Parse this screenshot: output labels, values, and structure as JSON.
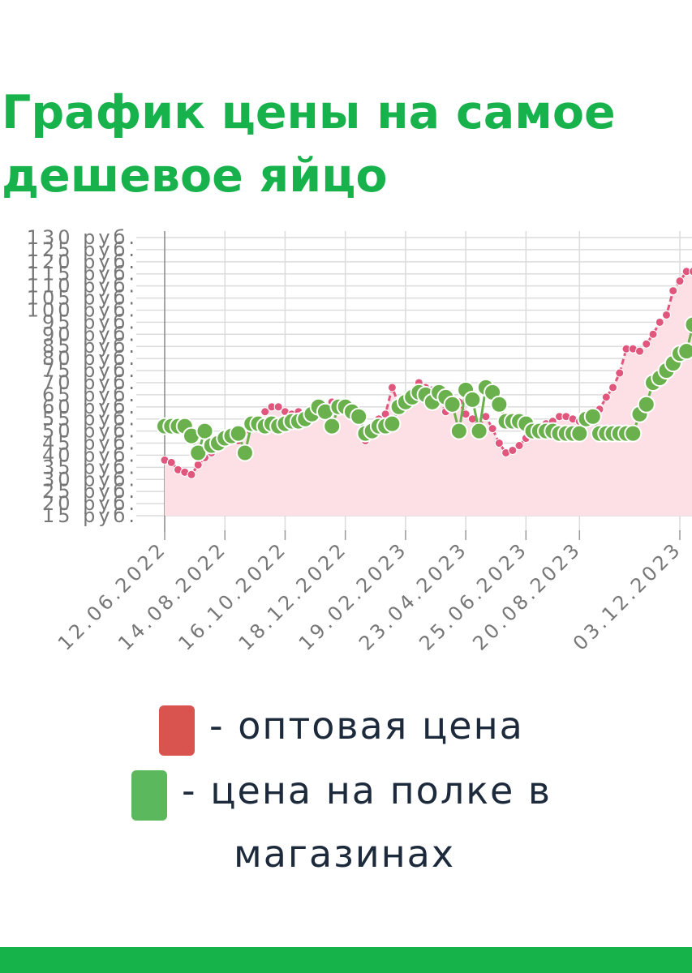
{
  "title": "График цены на самое дешевое яйцо",
  "legend": [
    {
      "swatch_color": "#d9534f",
      "label": "- оптовая цена"
    },
    {
      "swatch_color": "#5cb85c",
      "label_line1": "- цена на полке в",
      "label_line2": "магазинах"
    }
  ],
  "colors": {
    "title": "#17b24b",
    "wholesale_line": "#e0567d",
    "wholesale_fill": "#fde0e6",
    "shelf_marker": "#6ab04c",
    "shelf_stroke": "#ffffff",
    "footer": "#16b34a"
  },
  "chart_data": {
    "type": "line",
    "x_tick_labels": [
      "12.06.2022",
      "14.08.2022",
      "16.10.2022",
      "18.12.2022",
      "19.02.2023",
      "23.04.2023",
      "25.06.2023",
      "20.08.2023",
      "03.12.2023"
    ],
    "y_tick_labels": [
      "130 руб.",
      "125 руб.",
      "120 руб.",
      "115 руб.",
      "110 руб.",
      "105 руб.",
      "100 руб.",
      "95 руб.",
      "90 руб.",
      "85 руб.",
      "80 руб.",
      "75 руб.",
      "70 руб.",
      "65 руб.",
      "60 руб.",
      "55 руб.",
      "50 руб.",
      "45 руб.",
      "40 руб.",
      "35 руб.",
      "30 руб.",
      "25 руб.",
      "20 руб.",
      "15 руб."
    ],
    "ylim": [
      15,
      130
    ],
    "xlim": [
      "2022-06-12",
      "2023-12-03"
    ],
    "grid": true,
    "legend_position": "bottom",
    "series": [
      {
        "name": "оптовая цена",
        "style": "dashed line with small dots, filled area",
        "points": [
          [
            "2022-06-12",
            38
          ],
          [
            "2022-06-19",
            37
          ],
          [
            "2022-06-26",
            34
          ],
          [
            "2022-07-03",
            33
          ],
          [
            "2022-07-10",
            32
          ],
          [
            "2022-07-17",
            36
          ],
          [
            "2022-07-24",
            39
          ],
          [
            "2022-07-31",
            41
          ],
          [
            "2022-08-07",
            43
          ],
          [
            "2022-08-14",
            45
          ],
          [
            "2022-08-21",
            48
          ],
          [
            "2022-08-28",
            46
          ],
          [
            "2022-09-04",
            50
          ],
          [
            "2022-09-11",
            52
          ],
          [
            "2022-09-18",
            54
          ],
          [
            "2022-09-25",
            58
          ],
          [
            "2022-10-02",
            60
          ],
          [
            "2022-10-09",
            60
          ],
          [
            "2022-10-16",
            58
          ],
          [
            "2022-10-23",
            57
          ],
          [
            "2022-10-30",
            58
          ],
          [
            "2022-11-06",
            57
          ],
          [
            "2022-11-13",
            57
          ],
          [
            "2022-11-20",
            59
          ],
          [
            "2022-11-27",
            60
          ],
          [
            "2022-12-04",
            62
          ],
          [
            "2022-12-11",
            60
          ],
          [
            "2022-12-18",
            59
          ],
          [
            "2022-12-25",
            56
          ],
          [
            "2023-01-01",
            54
          ],
          [
            "2023-01-08",
            46
          ],
          [
            "2023-01-15",
            52
          ],
          [
            "2023-01-22",
            55
          ],
          [
            "2023-01-29",
            57
          ],
          [
            "2023-02-05",
            68
          ],
          [
            "2023-02-12",
            61
          ],
          [
            "2023-02-19",
            63
          ],
          [
            "2023-02-26",
            66
          ],
          [
            "2023-03-05",
            70
          ],
          [
            "2023-03-12",
            68
          ],
          [
            "2023-03-19",
            67
          ],
          [
            "2023-03-26",
            64
          ],
          [
            "2023-04-02",
            58
          ],
          [
            "2023-04-09",
            60
          ],
          [
            "2023-04-16",
            62
          ],
          [
            "2023-04-23",
            57
          ],
          [
            "2023-04-30",
            55
          ],
          [
            "2023-05-07",
            52
          ],
          [
            "2023-05-14",
            56
          ],
          [
            "2023-05-21",
            51
          ],
          [
            "2023-05-28",
            45
          ],
          [
            "2023-06-04",
            41
          ],
          [
            "2023-06-11",
            42
          ],
          [
            "2023-06-18",
            44
          ],
          [
            "2023-06-25",
            47
          ],
          [
            "2023-07-02",
            49
          ],
          [
            "2023-07-09",
            52
          ],
          [
            "2023-07-16",
            53
          ],
          [
            "2023-07-23",
            54
          ],
          [
            "2023-07-30",
            56
          ],
          [
            "2023-08-06",
            56
          ],
          [
            "2023-08-13",
            55
          ],
          [
            "2023-08-20",
            54
          ],
          [
            "2023-08-27",
            55
          ],
          [
            "2023-09-03",
            57
          ],
          [
            "2023-09-10",
            59
          ],
          [
            "2023-09-17",
            64
          ],
          [
            "2023-09-24",
            68
          ],
          [
            "2023-10-01",
            74
          ],
          [
            "2023-10-08",
            84
          ],
          [
            "2023-10-15",
            84
          ],
          [
            "2023-10-22",
            83
          ],
          [
            "2023-10-29",
            86
          ],
          [
            "2023-11-05",
            90
          ],
          [
            "2023-11-12",
            95
          ],
          [
            "2023-11-19",
            98
          ],
          [
            "2023-11-26",
            108
          ],
          [
            "2023-12-03",
            112
          ],
          [
            "2023-12-10",
            116
          ],
          [
            "2023-12-17",
            116
          ]
        ]
      },
      {
        "name": "цена на полке в магазинах",
        "style": "solid line with large round markers",
        "points": [
          [
            "2022-06-12",
            52
          ],
          [
            "2022-06-19",
            52
          ],
          [
            "2022-06-26",
            52
          ],
          [
            "2022-07-03",
            52
          ],
          [
            "2022-07-10",
            48
          ],
          [
            "2022-07-17",
            41
          ],
          [
            "2022-07-24",
            50
          ],
          [
            "2022-07-31",
            44
          ],
          [
            "2022-08-07",
            45
          ],
          [
            "2022-08-14",
            47
          ],
          [
            "2022-08-21",
            48
          ],
          [
            "2022-08-28",
            49
          ],
          [
            "2022-09-04",
            41
          ],
          [
            "2022-09-11",
            53
          ],
          [
            "2022-09-18",
            53
          ],
          [
            "2022-09-25",
            52
          ],
          [
            "2022-10-02",
            53
          ],
          [
            "2022-10-09",
            52
          ],
          [
            "2022-10-16",
            53
          ],
          [
            "2022-10-23",
            54
          ],
          [
            "2022-10-30",
            54
          ],
          [
            "2022-11-06",
            55
          ],
          [
            "2022-11-13",
            57
          ],
          [
            "2022-11-20",
            60
          ],
          [
            "2022-11-27",
            58
          ],
          [
            "2022-12-04",
            52
          ],
          [
            "2022-12-11",
            60
          ],
          [
            "2022-12-18",
            60
          ],
          [
            "2022-12-25",
            58
          ],
          [
            "2023-01-01",
            56
          ],
          [
            "2023-01-08",
            49
          ],
          [
            "2023-01-15",
            50
          ],
          [
            "2023-01-22",
            52
          ],
          [
            "2023-01-29",
            52
          ],
          [
            "2023-02-05",
            53
          ],
          [
            "2023-02-12",
            60
          ],
          [
            "2023-02-19",
            62
          ],
          [
            "2023-02-26",
            64
          ],
          [
            "2023-03-05",
            66
          ],
          [
            "2023-03-12",
            65
          ],
          [
            "2023-03-19",
            62
          ],
          [
            "2023-03-26",
            66
          ],
          [
            "2023-04-02",
            64
          ],
          [
            "2023-04-09",
            61
          ],
          [
            "2023-04-16",
            50
          ],
          [
            "2023-04-23",
            67
          ],
          [
            "2023-04-30",
            63
          ],
          [
            "2023-05-07",
            50
          ],
          [
            "2023-05-14",
            68
          ],
          [
            "2023-05-21",
            66
          ],
          [
            "2023-05-28",
            61
          ],
          [
            "2023-06-04",
            54
          ],
          [
            "2023-06-11",
            54
          ],
          [
            "2023-06-18",
            54
          ],
          [
            "2023-06-25",
            53
          ],
          [
            "2023-07-02",
            50
          ],
          [
            "2023-07-09",
            50
          ],
          [
            "2023-07-16",
            50
          ],
          [
            "2023-07-23",
            50
          ],
          [
            "2023-07-30",
            49
          ],
          [
            "2023-08-06",
            49
          ],
          [
            "2023-08-13",
            49
          ],
          [
            "2023-08-20",
            49
          ],
          [
            "2023-08-27",
            55
          ],
          [
            "2023-09-03",
            56
          ],
          [
            "2023-09-10",
            49
          ],
          [
            "2023-09-17",
            49
          ],
          [
            "2023-09-24",
            49
          ],
          [
            "2023-10-01",
            49
          ],
          [
            "2023-10-08",
            49
          ],
          [
            "2023-10-15",
            49
          ],
          [
            "2023-10-22",
            57
          ],
          [
            "2023-10-29",
            61
          ],
          [
            "2023-11-05",
            70
          ],
          [
            "2023-11-12",
            72
          ],
          [
            "2023-11-19",
            75
          ],
          [
            "2023-11-26",
            78
          ],
          [
            "2023-12-03",
            82
          ],
          [
            "2023-12-10",
            83
          ],
          [
            "2023-12-17",
            94
          ]
        ]
      }
    ]
  }
}
